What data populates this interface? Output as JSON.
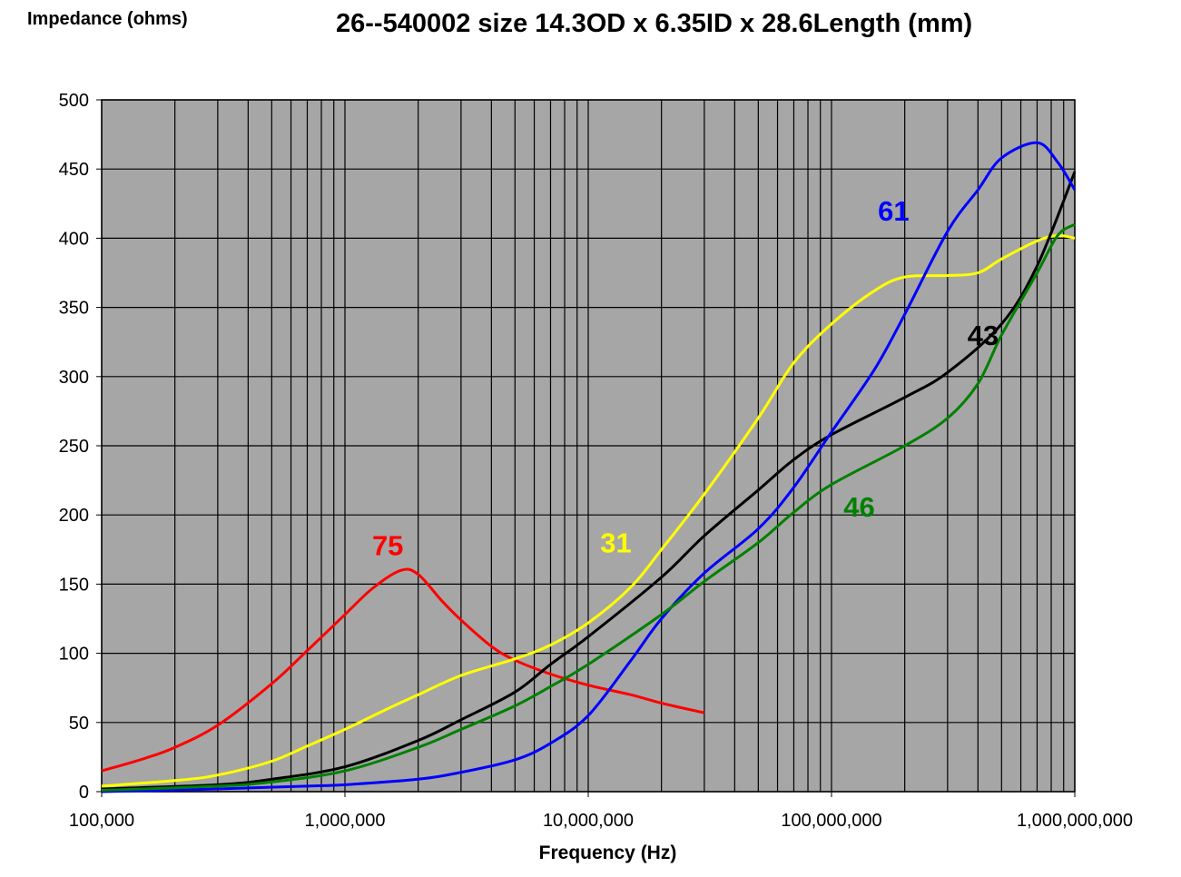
{
  "chart_data": {
    "type": "line",
    "title": "26--540002 size 14.3OD x 6.35ID x 28.6Length (mm)",
    "ylabel": "Impedance (ohms)",
    "xlabel": "Frequency (Hz)",
    "x_scale": "log",
    "xlim": [
      100000,
      1000000000
    ],
    "ylim": [
      0,
      500
    ],
    "grid": true,
    "legend": "inline labels",
    "x_tick_labels": [
      "100,000",
      "1,000,000",
      "10,000,000",
      "100,000,000",
      "1,000,000,000"
    ],
    "x_tick_values": [
      100000,
      1000000,
      10000000,
      100000000,
      1000000000
    ],
    "y_tick_labels": [
      "0",
      "50",
      "100",
      "150",
      "200",
      "250",
      "300",
      "350",
      "400",
      "450",
      "500"
    ],
    "y_tick_values": [
      0,
      50,
      100,
      150,
      200,
      250,
      300,
      350,
      400,
      450,
      500
    ],
    "colors": {
      "plot_bg": "#a6a6a6",
      "grid": "#000000"
    },
    "series": [
      {
        "name": "75",
        "color": "#ff0000",
        "label_x": 1500000,
        "label_y": 178,
        "points": [
          [
            100000,
            15
          ],
          [
            150000,
            24
          ],
          [
            200000,
            32
          ],
          [
            300000,
            48
          ],
          [
            500000,
            78
          ],
          [
            700000,
            102
          ],
          [
            1000000,
            128
          ],
          [
            1300000,
            147
          ],
          [
            1700000,
            160
          ],
          [
            2000000,
            157
          ],
          [
            2500000,
            138
          ],
          [
            3000000,
            124
          ],
          [
            4000000,
            105
          ],
          [
            5000000,
            95
          ],
          [
            7000000,
            85
          ],
          [
            10000000,
            77
          ],
          [
            15000000,
            70
          ],
          [
            20000000,
            64
          ],
          [
            30000000,
            57
          ]
        ]
      },
      {
        "name": "31",
        "color": "#ffff00",
        "label_x": 13000000,
        "label_y": 180,
        "points": [
          [
            100000,
            4
          ],
          [
            200000,
            8
          ],
          [
            300000,
            12
          ],
          [
            500000,
            22
          ],
          [
            700000,
            33
          ],
          [
            1000000,
            45
          ],
          [
            1500000,
            60
          ],
          [
            2000000,
            70
          ],
          [
            3000000,
            84
          ],
          [
            5000000,
            96
          ],
          [
            7000000,
            106
          ],
          [
            10000000,
            122
          ],
          [
            15000000,
            148
          ],
          [
            20000000,
            175
          ],
          [
            30000000,
            215
          ],
          [
            50000000,
            270
          ],
          [
            70000000,
            310
          ],
          [
            100000000,
            338
          ],
          [
            150000000,
            362
          ],
          [
            200000000,
            372
          ],
          [
            300000000,
            373
          ],
          [
            400000000,
            375
          ],
          [
            500000000,
            385
          ],
          [
            700000000,
            398
          ],
          [
            850000000,
            402
          ],
          [
            1000000000,
            400
          ]
        ]
      },
      {
        "name": "43",
        "color": "#000000",
        "label_x": 420000000,
        "label_y": 330,
        "points": [
          [
            100000,
            2
          ],
          [
            300000,
            5
          ],
          [
            500000,
            9
          ],
          [
            1000000,
            18
          ],
          [
            2000000,
            37
          ],
          [
            3000000,
            52
          ],
          [
            5000000,
            72
          ],
          [
            7000000,
            92
          ],
          [
            10000000,
            112
          ],
          [
            20000000,
            155
          ],
          [
            30000000,
            185
          ],
          [
            50000000,
            218
          ],
          [
            70000000,
            240
          ],
          [
            100000000,
            258
          ],
          [
            200000000,
            285
          ],
          [
            300000000,
            303
          ],
          [
            500000000,
            338
          ],
          [
            700000000,
            380
          ],
          [
            1000000000,
            448
          ]
        ]
      },
      {
        "name": "61",
        "color": "#0000ff",
        "label_x": 180000000,
        "label_y": 420,
        "points": [
          [
            100000,
            0
          ],
          [
            300000,
            2
          ],
          [
            700000,
            4
          ],
          [
            1000000,
            5
          ],
          [
            2000000,
            9
          ],
          [
            3000000,
            14
          ],
          [
            5000000,
            23
          ],
          [
            7000000,
            35
          ],
          [
            10000000,
            55
          ],
          [
            15000000,
            95
          ],
          [
            20000000,
            125
          ],
          [
            30000000,
            158
          ],
          [
            50000000,
            190
          ],
          [
            70000000,
            220
          ],
          [
            100000000,
            260
          ],
          [
            150000000,
            305
          ],
          [
            200000000,
            345
          ],
          [
            300000000,
            405
          ],
          [
            400000000,
            435
          ],
          [
            500000000,
            458
          ],
          [
            700000000,
            469
          ],
          [
            850000000,
            455
          ],
          [
            1000000000,
            435
          ]
        ]
      },
      {
        "name": "46",
        "color": "#008000",
        "label_x": 130000000,
        "label_y": 206,
        "points": [
          [
            100000,
            1
          ],
          [
            300000,
            4
          ],
          [
            500000,
            7
          ],
          [
            1000000,
            15
          ],
          [
            2000000,
            32
          ],
          [
            3000000,
            45
          ],
          [
            5000000,
            62
          ],
          [
            7000000,
            76
          ],
          [
            10000000,
            92
          ],
          [
            20000000,
            128
          ],
          [
            30000000,
            152
          ],
          [
            50000000,
            180
          ],
          [
            70000000,
            202
          ],
          [
            100000000,
            222
          ],
          [
            200000000,
            250
          ],
          [
            300000000,
            270
          ],
          [
            400000000,
            295
          ],
          [
            500000000,
            330
          ],
          [
            700000000,
            375
          ],
          [
            850000000,
            402
          ],
          [
            1000000000,
            410
          ]
        ]
      }
    ]
  }
}
